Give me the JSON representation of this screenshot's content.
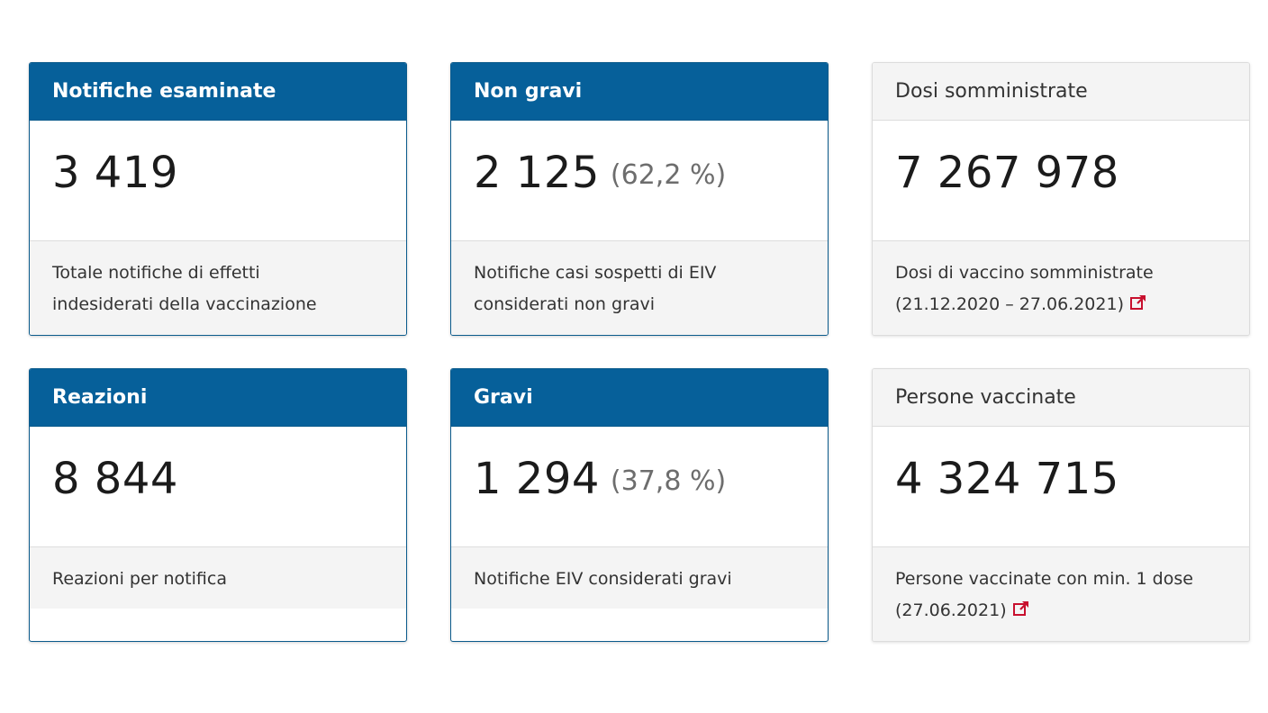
{
  "cards": [
    {
      "title": "Notifiche esaminate",
      "value": "3 419",
      "percent": "",
      "description_lines": [
        "Totale notifiche di effetti",
        "indesiderati della vaccinazione"
      ]
    },
    {
      "title": "Non gravi",
      "value": "2 125",
      "percent": "(62,2 %)",
      "description_lines": [
        "Notifiche casi sospetti di EIV",
        "considerati non gravi"
      ]
    },
    {
      "title": "Dosi somministrate",
      "value": "7 267 978",
      "percent": "",
      "description_lines": [
        "Dosi di vaccino somministrate",
        "(21.12.2020 – 27.06.2021)"
      ],
      "has_external_link": true
    },
    {
      "title": "Reazioni",
      "value": "8 844",
      "percent": "",
      "description_lines": [
        "Reazioni per notifica"
      ]
    },
    {
      "title": "Gravi",
      "value": "1 294",
      "percent": "(37,8 %)",
      "description_lines": [
        "Notifiche EIV considerati gravi"
      ]
    },
    {
      "title": "Persone vaccinate",
      "value": "4 324 715",
      "percent": "",
      "description_lines": [
        "Persone vaccinate con min. 1 dose",
        "(27.06.2021)"
      ],
      "has_external_link": true
    }
  ],
  "icons": {
    "external_link": "external-link-icon"
  },
  "colors": {
    "header_blue": "#06609a",
    "header_light": "#f4f4f4",
    "footer_bg": "#f4f4f4",
    "link_icon": "#c8102e",
    "percent_text": "#6d6d6d"
  }
}
